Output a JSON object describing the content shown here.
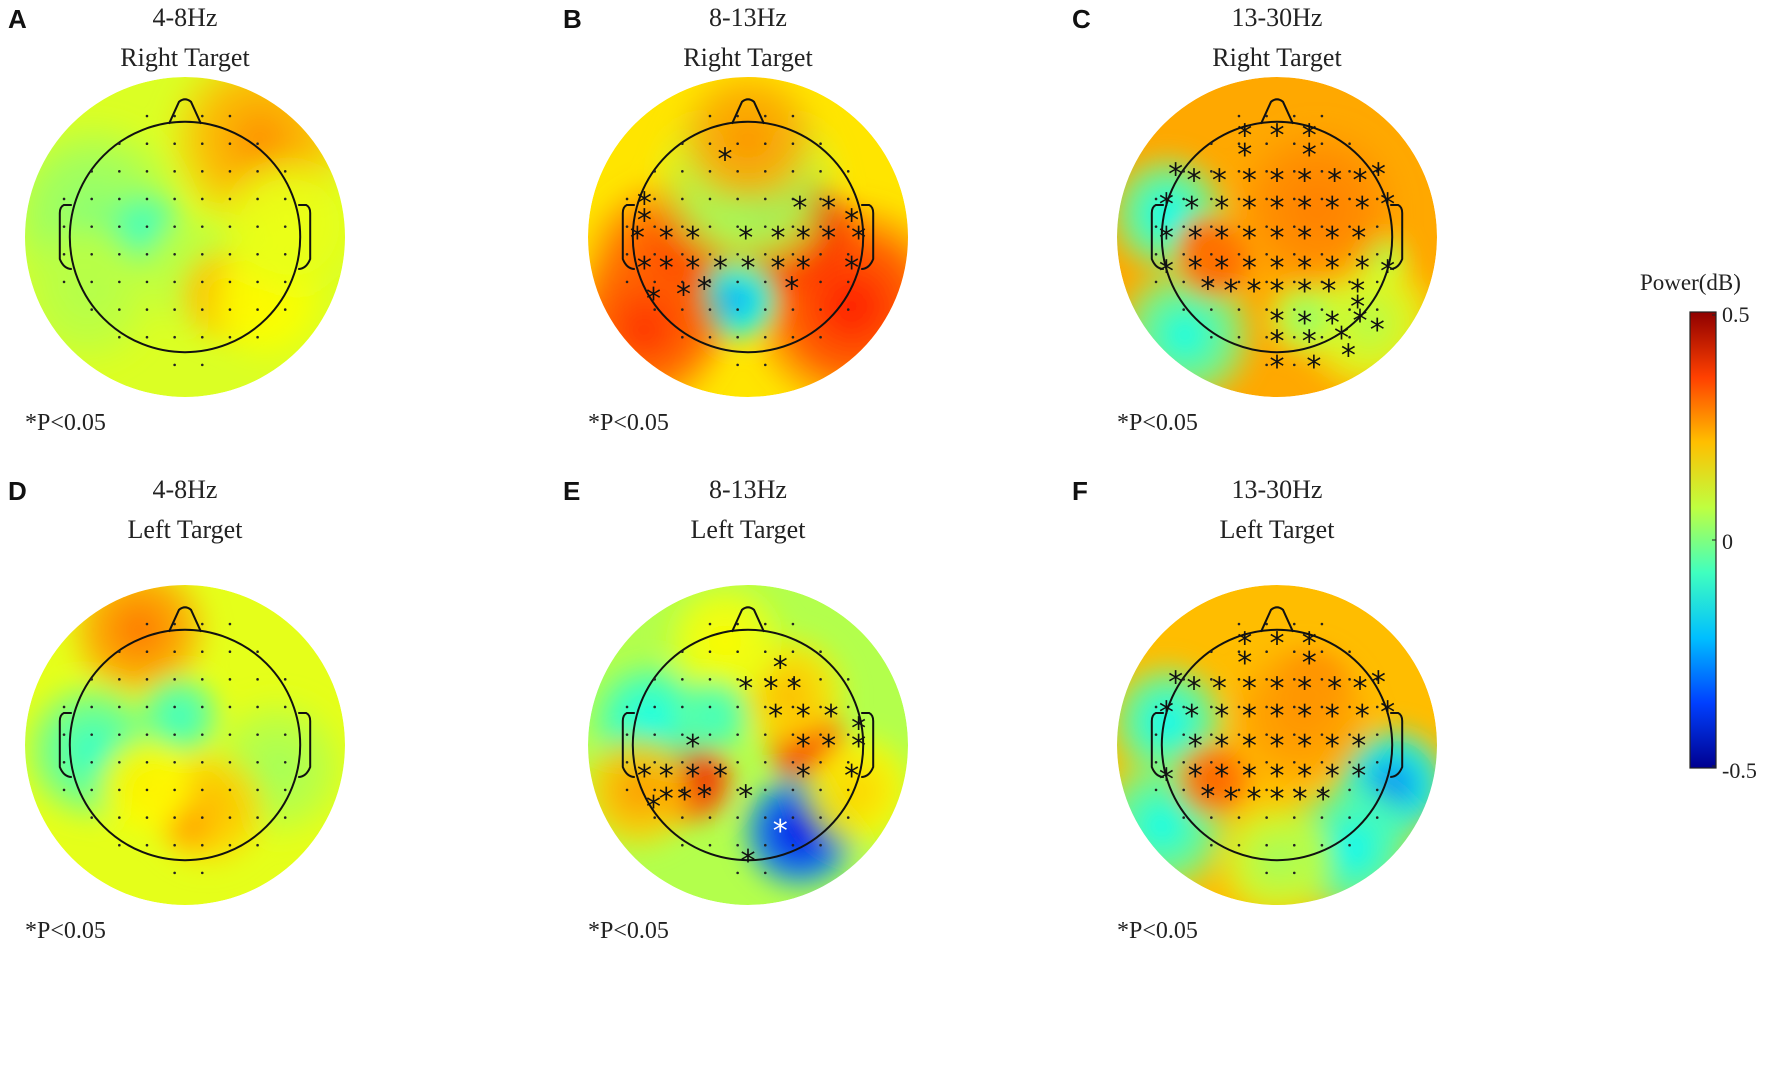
{
  "figure": {
    "panels": [
      {
        "letter": "A",
        "freq": "4-8Hz",
        "target": "Right Target",
        "sig": "*P<0.05",
        "base": 0.18,
        "blobs": [
          [
            0.65,
            -0.85,
            0.45,
            0.18
          ],
          [
            -0.8,
            -0.2,
            0.45,
            -0.1
          ],
          [
            -0.35,
            -0.05,
            0.22,
            -0.2
          ],
          [
            0.1,
            0.3,
            0.3,
            -0.05
          ],
          [
            0.35,
            0.5,
            0.25,
            0.15
          ],
          [
            0.7,
            0.55,
            0.3,
            0.05
          ],
          [
            -0.85,
            0.5,
            0.35,
            -0.05
          ],
          [
            0.9,
            -0.1,
            0.35,
            0.02
          ]
        ],
        "stars": []
      },
      {
        "letter": "B",
        "freq": "8-13Hz",
        "target": "Right Target",
        "sig": "*P<0.05",
        "base": 0.3,
        "blobs": [
          [
            0.45,
            0.0,
            0.3,
            0.4
          ],
          [
            0.35,
            -0.02,
            0.18,
            0.15
          ],
          [
            -0.65,
            0.3,
            0.45,
            0.22
          ],
          [
            0.9,
            0.6,
            0.5,
            0.25
          ],
          [
            -0.1,
            0.55,
            0.22,
            -0.45
          ],
          [
            0.0,
            -0.45,
            0.45,
            -0.18
          ],
          [
            0.0,
            -0.85,
            0.35,
            0.1
          ],
          [
            -0.9,
            0.8,
            0.4,
            0.22
          ]
        ],
        "stars": [
          [
            -0.2,
            -0.68
          ],
          [
            -0.9,
            -0.3
          ],
          [
            0.45,
            -0.26
          ],
          [
            0.7,
            -0.26
          ],
          [
            -0.9,
            -0.15
          ],
          [
            -0.96,
            0.0
          ],
          [
            -0.71,
            0.0
          ],
          [
            -0.48,
            0.0
          ],
          [
            -0.02,
            0.0
          ],
          [
            0.26,
            0.0
          ],
          [
            0.48,
            0.0
          ],
          [
            0.7,
            0.0
          ],
          [
            0.96,
            0.0
          ],
          [
            0.9,
            -0.15
          ],
          [
            -0.71,
            0.26
          ],
          [
            -0.48,
            0.26
          ],
          [
            -0.24,
            0.26
          ],
          [
            0.0,
            0.26
          ],
          [
            0.26,
            0.26
          ],
          [
            0.48,
            0.26
          ],
          [
            -0.9,
            0.26
          ],
          [
            0.9,
            0.26
          ],
          [
            -0.56,
            0.49
          ],
          [
            -0.38,
            0.44
          ],
          [
            0.38,
            0.44
          ],
          [
            -0.82,
            0.53
          ]
        ]
      },
      {
        "letter": "C",
        "freq": "13-30Hz",
        "target": "Right Target",
        "sig": "*P<0.05",
        "base": 0.42,
        "blobs": [
          [
            -0.95,
            -0.2,
            0.3,
            -0.42
          ],
          [
            -0.8,
            0.85,
            0.35,
            -0.4
          ],
          [
            0.9,
            0.2,
            0.15,
            -0.25
          ],
          [
            0.8,
            0.75,
            0.35,
            -0.2
          ],
          [
            0.25,
            0.7,
            0.2,
            -0.25
          ],
          [
            -0.55,
            0.2,
            0.2,
            0.1
          ],
          [
            0.35,
            -0.25,
            0.4,
            0.05
          ],
          [
            -0.62,
            0.05,
            0.15,
            0.08
          ]
        ],
        "stars": [
          [
            -0.28,
            -0.89
          ],
          [
            0.0,
            -0.89
          ],
          [
            0.28,
            -0.89
          ],
          [
            -0.28,
            -0.72
          ],
          [
            0.28,
            -0.72
          ],
          [
            -0.88,
            -0.55
          ],
          [
            -0.72,
            -0.5
          ],
          [
            -0.5,
            -0.5
          ],
          [
            -0.24,
            -0.5
          ],
          [
            0.0,
            -0.5
          ],
          [
            0.24,
            -0.5
          ],
          [
            0.5,
            -0.5
          ],
          [
            0.72,
            -0.5
          ],
          [
            0.88,
            -0.55
          ],
          [
            -0.96,
            -0.29
          ],
          [
            -0.74,
            -0.26
          ],
          [
            -0.48,
            -0.26
          ],
          [
            -0.24,
            -0.26
          ],
          [
            0.0,
            -0.26
          ],
          [
            0.24,
            -0.26
          ],
          [
            0.48,
            -0.26
          ],
          [
            0.74,
            -0.26
          ],
          [
            0.96,
            -0.29
          ],
          [
            -0.96,
            0.0
          ],
          [
            -0.71,
            0.0
          ],
          [
            -0.48,
            0.0
          ],
          [
            -0.24,
            0.0
          ],
          [
            0.0,
            0.0
          ],
          [
            0.24,
            0.0
          ],
          [
            0.48,
            0.0
          ],
          [
            0.71,
            0.0
          ],
          [
            -0.71,
            0.26
          ],
          [
            -0.48,
            0.26
          ],
          [
            -0.24,
            0.26
          ],
          [
            0.0,
            0.26
          ],
          [
            0.24,
            0.26
          ],
          [
            0.48,
            0.26
          ],
          [
            0.74,
            0.26
          ],
          [
            -0.96,
            0.29
          ],
          [
            0.96,
            0.29
          ],
          [
            -0.6,
            0.44
          ],
          [
            -0.4,
            0.46
          ],
          [
            -0.2,
            0.46
          ],
          [
            0.0,
            0.46
          ],
          [
            0.24,
            0.46
          ],
          [
            0.45,
            0.46
          ],
          [
            0.7,
            0.46
          ],
          [
            0.0,
            0.72
          ],
          [
            0.0,
            0.9
          ],
          [
            0.24,
            0.74
          ],
          [
            0.48,
            0.74
          ],
          [
            0.72,
            0.72
          ],
          [
            0.28,
            0.9
          ],
          [
            0.56,
            0.87
          ],
          [
            0.87,
            0.8
          ],
          [
            0.0,
            1.12
          ],
          [
            0.32,
            1.12
          ],
          [
            0.62,
            1.02
          ],
          [
            0.7,
            0.6
          ]
        ]
      },
      {
        "letter": "D",
        "freq": "4-8Hz",
        "target": "Left Target",
        "sig": "*P<0.05",
        "base": 0.2,
        "blobs": [
          [
            -0.4,
            -1.0,
            0.35,
            0.2
          ],
          [
            -0.05,
            -0.25,
            0.22,
            -0.22
          ],
          [
            -0.8,
            0.05,
            0.35,
            -0.22
          ],
          [
            0.8,
            0.2,
            0.35,
            -0.08
          ],
          [
            0.2,
            0.55,
            0.3,
            0.12
          ],
          [
            0.05,
            0.7,
            0.15,
            0.15
          ],
          [
            -0.35,
            0.35,
            0.25,
            0.05
          ]
        ],
        "stars": []
      },
      {
        "letter": "E",
        "freq": "8-13Hz",
        "target": "Left Target",
        "sig": "*P<0.05",
        "base": 0.1,
        "blobs": [
          [
            -0.52,
            0.3,
            0.24,
            0.45
          ],
          [
            0.52,
            0.0,
            0.22,
            0.42
          ],
          [
            0.35,
            -0.45,
            0.3,
            0.18
          ],
          [
            0.45,
            0.75,
            0.3,
            -0.55
          ],
          [
            -0.85,
            -0.2,
            0.3,
            -0.2
          ],
          [
            -0.95,
            0.4,
            0.3,
            0.22
          ],
          [
            0.95,
            0.4,
            0.3,
            0.15
          ],
          [
            -0.2,
            -0.9,
            0.3,
            0.1
          ],
          [
            -0.3,
            -0.25,
            0.2,
            -0.15
          ]
        ],
        "stars": [
          [
            0.28,
            -0.68
          ],
          [
            -0.02,
            -0.5
          ],
          [
            0.2,
            -0.5
          ],
          [
            0.4,
            -0.5
          ],
          [
            0.24,
            -0.26
          ],
          [
            0.48,
            -0.26
          ],
          [
            0.72,
            -0.26
          ],
          [
            0.96,
            -0.15
          ],
          [
            0.48,
            0.0
          ],
          [
            0.7,
            0.0
          ],
          [
            0.96,
            0.0
          ],
          [
            0.48,
            0.26
          ],
          [
            0.9,
            0.26
          ],
          [
            -0.48,
            0.0
          ],
          [
            -0.71,
            0.26
          ],
          [
            -0.48,
            0.26
          ],
          [
            -0.24,
            0.26
          ],
          [
            -0.9,
            0.26
          ],
          [
            -0.71,
            0.46
          ],
          [
            -0.55,
            0.46
          ],
          [
            -0.38,
            0.44
          ],
          [
            -0.02,
            0.44
          ],
          [
            -0.82,
            0.53
          ],
          [
            0.0,
            1.0
          ]
        ],
        "white_stars": [
          [
            0.28,
            0.74
          ]
        ]
      },
      {
        "letter": "F",
        "freq": "13-30Hz",
        "target": "Left Target",
        "sig": "*P<0.05",
        "base": 0.38,
        "blobs": [
          [
            -0.95,
            -0.2,
            0.3,
            -0.4
          ],
          [
            -1.0,
            0.7,
            0.35,
            -0.38
          ],
          [
            1.0,
            0.35,
            0.3,
            -0.55
          ],
          [
            0.65,
            0.9,
            0.35,
            -0.4
          ],
          [
            0.0,
            1.0,
            0.3,
            -0.2
          ],
          [
            0.3,
            -0.5,
            0.2,
            0.12
          ],
          [
            -0.55,
            0.3,
            0.2,
            0.12
          ],
          [
            0.2,
            -0.25,
            0.35,
            0.05
          ]
        ],
        "stars": [
          [
            -0.28,
            -0.89
          ],
          [
            0.0,
            -0.89
          ],
          [
            0.28,
            -0.89
          ],
          [
            -0.28,
            -0.72
          ],
          [
            0.28,
            -0.72
          ],
          [
            -0.88,
            -0.55
          ],
          [
            -0.72,
            -0.5
          ],
          [
            -0.5,
            -0.5
          ],
          [
            -0.24,
            -0.5
          ],
          [
            0.0,
            -0.5
          ],
          [
            0.24,
            -0.5
          ],
          [
            0.5,
            -0.5
          ],
          [
            0.72,
            -0.5
          ],
          [
            0.88,
            -0.55
          ],
          [
            -0.96,
            -0.29
          ],
          [
            -0.74,
            -0.26
          ],
          [
            -0.48,
            -0.26
          ],
          [
            -0.24,
            -0.26
          ],
          [
            0.0,
            -0.26
          ],
          [
            0.24,
            -0.26
          ],
          [
            0.48,
            -0.26
          ],
          [
            0.74,
            -0.26
          ],
          [
            0.96,
            -0.29
          ],
          [
            -0.71,
            0.0
          ],
          [
            -0.48,
            0.0
          ],
          [
            -0.24,
            0.0
          ],
          [
            0.0,
            0.0
          ],
          [
            0.24,
            0.0
          ],
          [
            0.48,
            0.0
          ],
          [
            0.71,
            0.0
          ],
          [
            -0.71,
            0.26
          ],
          [
            -0.48,
            0.26
          ],
          [
            -0.24,
            0.26
          ],
          [
            0.0,
            0.26
          ],
          [
            0.24,
            0.26
          ],
          [
            0.48,
            0.26
          ],
          [
            0.71,
            0.26
          ],
          [
            -0.96,
            0.29
          ],
          [
            -0.6,
            0.44
          ],
          [
            -0.4,
            0.46
          ],
          [
            -0.2,
            0.46
          ],
          [
            0.0,
            0.46
          ],
          [
            0.2,
            0.46
          ],
          [
            0.4,
            0.46
          ]
        ]
      }
    ],
    "colorbar": {
      "title": "Power(dB)",
      "max_label": "0.5",
      "mid_label": "0",
      "min_label": "-0.5",
      "range": [
        -0.5,
        0.5
      ],
      "colors": [
        "#00008f",
        "#0040ff",
        "#00bfff",
        "#40ffbf",
        "#bfff40",
        "#ffbf00",
        "#ff4000",
        "#8f0000"
      ]
    }
  }
}
